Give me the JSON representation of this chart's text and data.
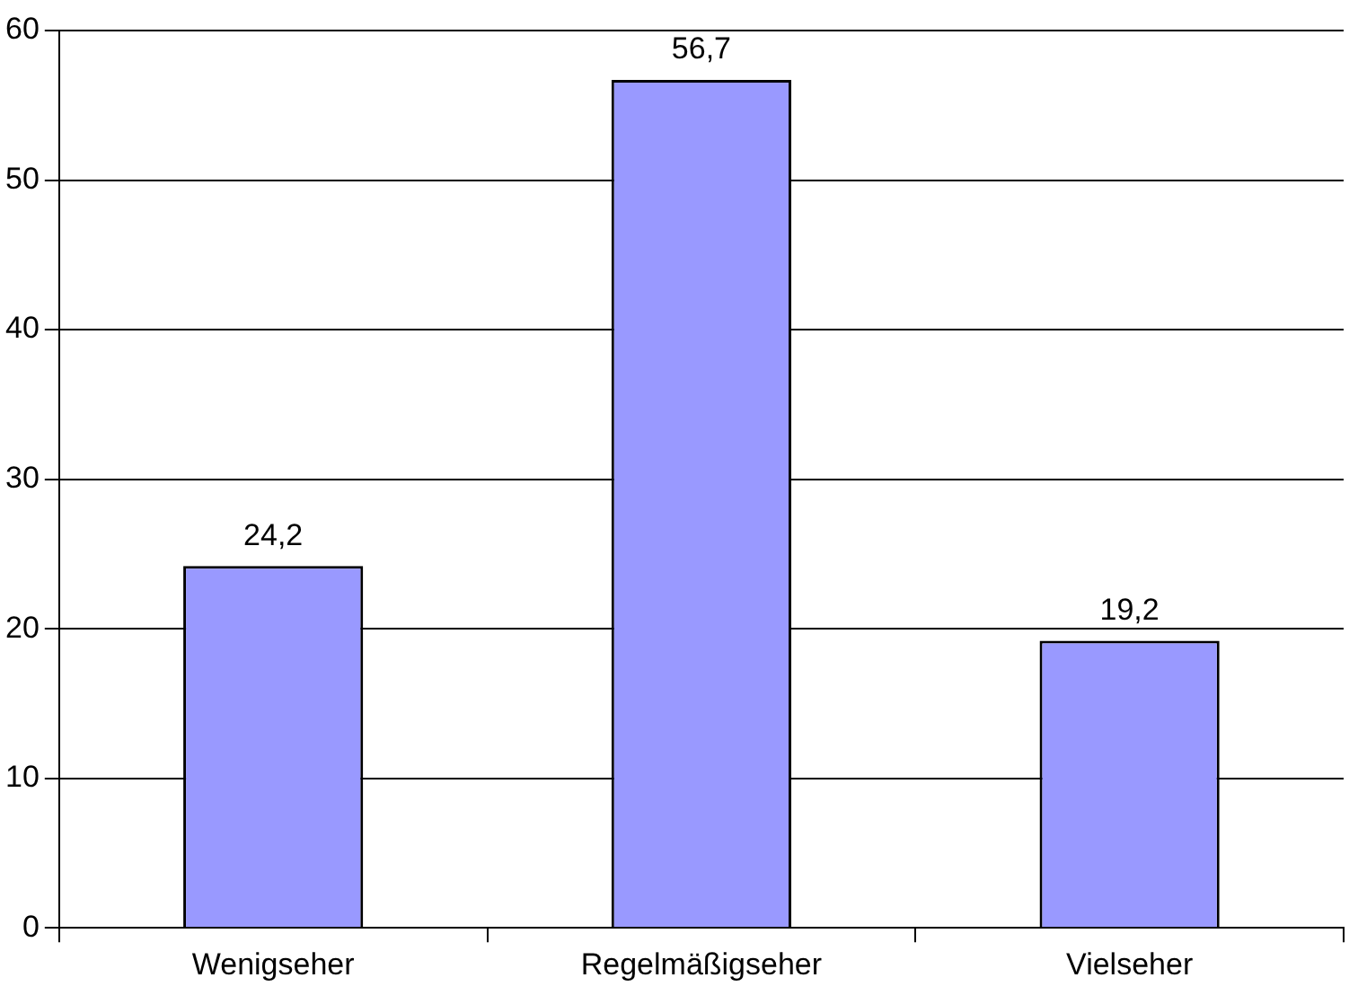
{
  "chart_data": {
    "type": "bar",
    "categories": [
      "Wenigseher",
      "Regelmäßigseher",
      "Vielseher"
    ],
    "values": [
      24.2,
      56.7,
      19.2
    ],
    "value_labels": [
      "24,2",
      "56,7",
      "19,2"
    ],
    "color": "#9999ff",
    "ylim": [
      0,
      60
    ],
    "yticks": [
      0,
      10,
      20,
      30,
      40,
      50,
      60
    ],
    "grid": "y",
    "legend": false
  }
}
